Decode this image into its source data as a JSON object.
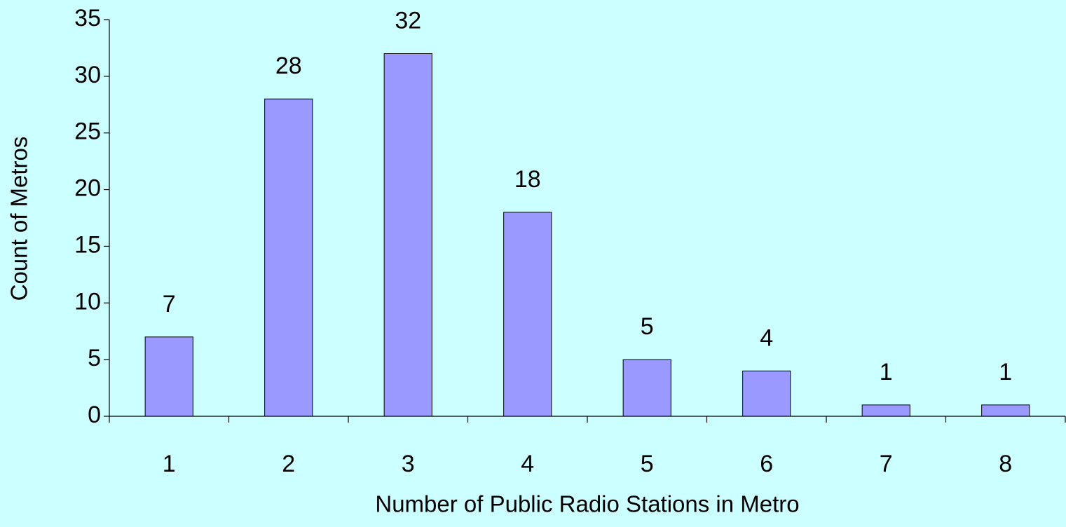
{
  "chart_data": {
    "type": "bar",
    "xlabel": "Number of Public Radio Stations in Metro",
    "ylabel": "Count of Metros",
    "categories": [
      "1",
      "2",
      "3",
      "4",
      "5",
      "6",
      "7",
      "8"
    ],
    "values": [
      7,
      28,
      32,
      18,
      5,
      4,
      1,
      1
    ],
    "color": "#9999ff",
    "ylim": [
      0,
      35
    ],
    "yticks": [
      0,
      5,
      10,
      15,
      20,
      25,
      30,
      35
    ],
    "grid": false
  }
}
